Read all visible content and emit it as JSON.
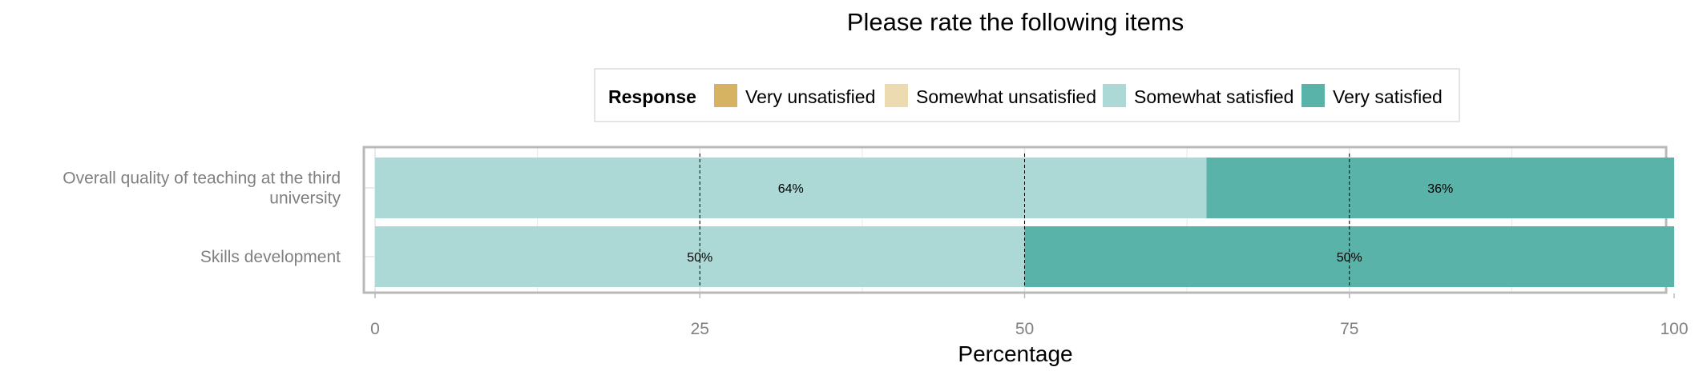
{
  "chart_data": {
    "type": "bar",
    "orientation": "horizontal",
    "stacked": true,
    "title": "Please rate the following items",
    "xlabel": "Percentage",
    "ylabel": "",
    "xlim": [
      0,
      100
    ],
    "xticks": [
      0,
      25,
      50,
      75,
      100
    ],
    "reference_lines": [
      25,
      50,
      75
    ],
    "grid": true,
    "legend": {
      "title": "Response",
      "position": "top",
      "entries": [
        {
          "name": "Very unsatisfied",
          "color": "#d6b263"
        },
        {
          "name": "Somewhat unsatisfied",
          "color": "#ecdbb1"
        },
        {
          "name": "Somewhat satisfied",
          "color": "#acd9d6"
        },
        {
          "name": "Very satisfied",
          "color": "#5ab3a9"
        }
      ]
    },
    "categories": [
      "Overall quality of teaching at the third university",
      "Skills development"
    ],
    "category_lines": [
      [
        "Overall quality of teaching at the third",
        "university"
      ],
      [
        "Skills development"
      ]
    ],
    "series": [
      {
        "name": "Very unsatisfied",
        "values": [
          0,
          0
        ],
        "labels": [
          "",
          ""
        ]
      },
      {
        "name": "Somewhat unsatisfied",
        "values": [
          0,
          0
        ],
        "labels": [
          "",
          ""
        ]
      },
      {
        "name": "Somewhat satisfied",
        "values": [
          64,
          50
        ],
        "labels": [
          "64%",
          "50%"
        ]
      },
      {
        "name": "Very satisfied",
        "values": [
          36,
          50
        ],
        "labels": [
          "36%",
          "50%"
        ]
      }
    ]
  }
}
